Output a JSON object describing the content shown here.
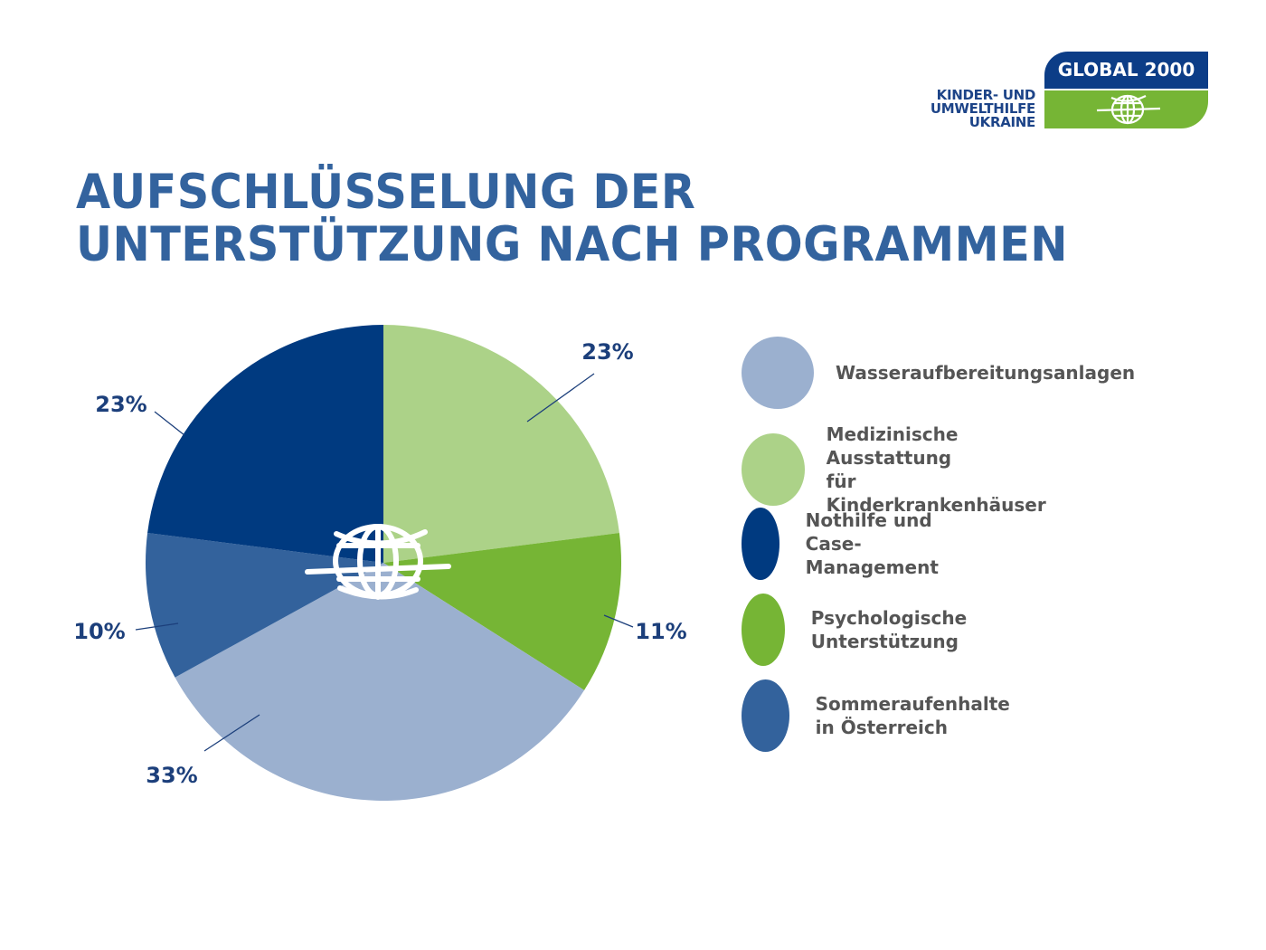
{
  "logo": {
    "left_text": "KINDER- UND\nUMWELTHILFE\nUKRAINE",
    "brand": "GLOBAL 2000",
    "colors": {
      "blue": "#0c3d87",
      "green": "#76b535"
    }
  },
  "chart_data": {
    "type": "pie",
    "title": "AUFSCHLÜSSELUNG DER\nUNTERSTÜTZUNG NACH PROGRAMMEN",
    "title_lines": [
      "AUFSCHLÜSSELUNG DER",
      "UNTERSTÜTZUNG NACH PROGRAMMEN"
    ],
    "start": "top",
    "direction": "clockwise",
    "slices": [
      {
        "name": "Medizinische Ausstattung für Kinderkrankenhäuser",
        "value": 23,
        "label": "23%",
        "color": "#acd288"
      },
      {
        "name": "Psychologische Unterstützung",
        "value": 11,
        "label": "11%",
        "color": "#76b535"
      },
      {
        "name": "Wasseraufbereitungsanlagen",
        "value": 33,
        "label": "33%",
        "color": "#9bb0cf"
      },
      {
        "name": "Sommeraufenhalte in Österreich",
        "value": 10,
        "label": "10%",
        "color": "#33629c"
      },
      {
        "name": "Nothilfe und Case-Management",
        "value": 23,
        "label": "23%",
        "color": "#003a80"
      }
    ],
    "legend": [
      {
        "label": "Wasseraufbereitungsanlagen",
        "color": "#9bb0cf"
      },
      {
        "label": "Medizinische Ausstattung\nfür Kinderkrankenhäuser",
        "color": "#acd288"
      },
      {
        "label": "Nothilfe und Case-Management",
        "color": "#003a80"
      },
      {
        "label": "Psychologische Unterstützung",
        "color": "#76b535"
      },
      {
        "label": "Sommeraufenhalte in Österreich",
        "color": "#33629c"
      }
    ],
    "legend_position": "right",
    "center_icon": "globe-icon"
  }
}
